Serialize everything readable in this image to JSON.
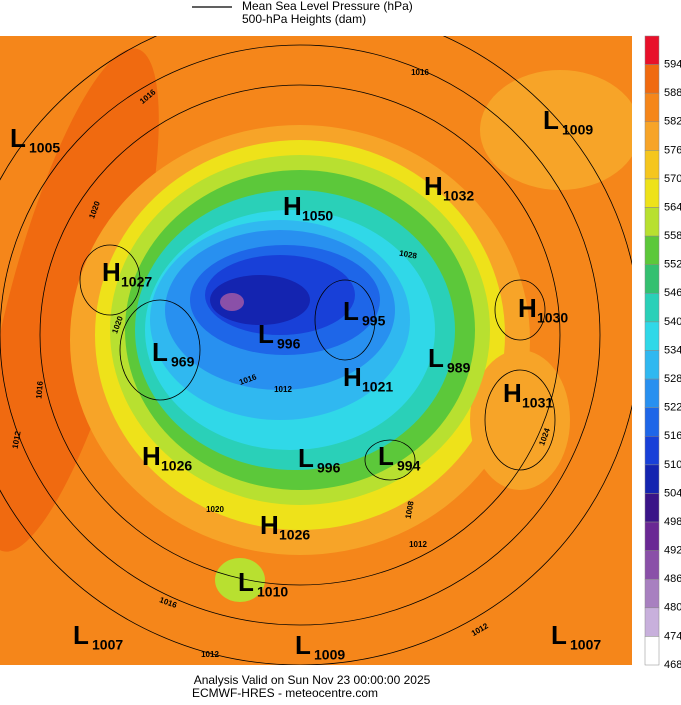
{
  "header": {
    "legend_lines": [
      "Mean Sea Level Pressure (hPa)",
      "500-hPa Heights (dam)"
    ]
  },
  "colorbar": [
    {
      "label": 594,
      "color": "#e8102a"
    },
    {
      "label": 588,
      "color": "#f06a10"
    },
    {
      "label": 582,
      "color": "#f5861a"
    },
    {
      "label": 576,
      "color": "#f7a428"
    },
    {
      "label": 570,
      "color": "#f5c61e"
    },
    {
      "label": 564,
      "color": "#eee21a"
    },
    {
      "label": 558,
      "color": "#b8e030"
    },
    {
      "label": 552,
      "color": "#5cc83a"
    },
    {
      "label": 546,
      "color": "#34c070"
    },
    {
      "label": 540,
      "color": "#2ad0b8"
    },
    {
      "label": 534,
      "color": "#30d8e8"
    },
    {
      "label": 528,
      "color": "#30b8f0"
    },
    {
      "label": 522,
      "color": "#2890f0"
    },
    {
      "label": 516,
      "color": "#1e66e8"
    },
    {
      "label": 510,
      "color": "#1840d8"
    },
    {
      "label": 504,
      "color": "#1424b0"
    },
    {
      "label": 498,
      "color": "#3a1488"
    },
    {
      "label": 492,
      "color": "#6a2894"
    },
    {
      "label": 486,
      "color": "#8a50a8"
    },
    {
      "label": 480,
      "color": "#a880c0"
    },
    {
      "label": 474,
      "color": "#c8b0dc"
    },
    {
      "label": 468,
      "color": "#ffffff"
    }
  ],
  "pressure_centers": [
    {
      "kind": "L",
      "value": "1005"
    },
    {
      "kind": "H",
      "value": "1050"
    },
    {
      "kind": "H",
      "value": "1032"
    },
    {
      "kind": "L",
      "value": "1009"
    },
    {
      "kind": "H",
      "value": "1027"
    },
    {
      "kind": "L",
      "value": "995"
    },
    {
      "kind": "H",
      "value": "1030"
    },
    {
      "kind": "L",
      "value": "996"
    },
    {
      "kind": "L",
      "value": "969"
    },
    {
      "kind": "L",
      "value": "989"
    },
    {
      "kind": "H",
      "value": "1021"
    },
    {
      "kind": "H",
      "value": "1031"
    },
    {
      "kind": "H",
      "value": "1026"
    },
    {
      "kind": "L",
      "value": "996"
    },
    {
      "kind": "L",
      "value": "994"
    },
    {
      "kind": "H",
      "value": "1026"
    },
    {
      "kind": "L",
      "value": "1010"
    },
    {
      "kind": "L",
      "value": "1007"
    },
    {
      "kind": "L",
      "value": "1009"
    },
    {
      "kind": "L",
      "value": "1007"
    }
  ],
  "isobar_labels": [
    "1016",
    "1016",
    "1020",
    "1028",
    "1020",
    "1016",
    "1012",
    "1020",
    "1008",
    "1012",
    "1016",
    "1012",
    "1012",
    "1024",
    "1012",
    "1016"
  ],
  "footer": {
    "lines": [
      "Analysis Valid on Sun Nov 23 00:00:00 2025",
      "ECMWF-HRES - meteocentre.com"
    ]
  }
}
